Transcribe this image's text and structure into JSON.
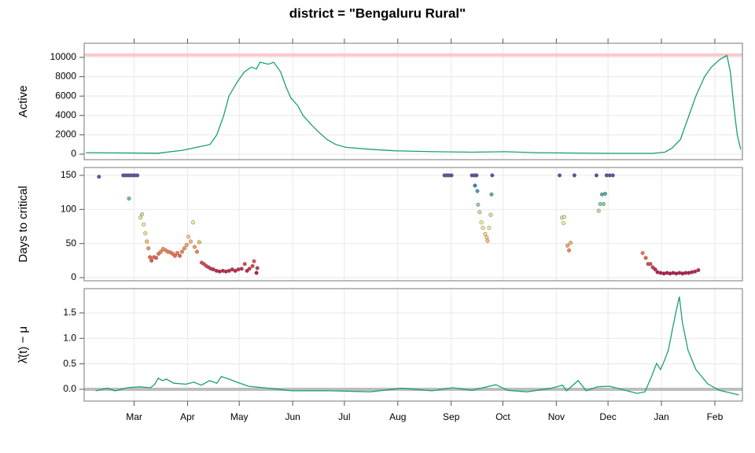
{
  "title": "district = \"Bengaluru Rural\"",
  "chart_data": [
    {
      "type": "line",
      "ylabel": "Active",
      "color": "#1b9e77",
      "reference_line": 10250,
      "reference_color": "#ffc8c8",
      "ylim": [
        -570,
        11460
      ],
      "yticks": [
        0,
        2000,
        4000,
        6000,
        8000,
        10000
      ],
      "grid": true,
      "x": [
        1,
        43,
        57,
        68,
        73,
        77,
        81,
        84,
        89,
        93,
        97,
        100,
        102,
        107,
        110,
        114,
        117,
        120,
        124,
        127,
        132,
        136,
        141,
        146,
        152,
        166,
        180,
        203,
        225,
        244,
        262,
        280,
        307,
        330,
        337,
        341,
        346,
        350,
        355,
        360,
        364,
        369,
        373,
        375,
        377,
        379,
        381
      ],
      "y": [
        150,
        100,
        400,
        800,
        1000,
        2000,
        4000,
        6000,
        7500,
        8500,
        9000,
        8800,
        9500,
        9300,
        9500,
        8500,
        7000,
        5800,
        5000,
        4000,
        3000,
        2300,
        1500,
        1000,
        700,
        500,
        350,
        250,
        200,
        250,
        150,
        120,
        80,
        80,
        200,
        600,
        1500,
        3500,
        6000,
        8000,
        9000,
        9800,
        10200,
        8500,
        5000,
        2000,
        500
      ]
    },
    {
      "type": "scatter",
      "ylabel": "Days to critical",
      "colormap": [
        "#9e0142",
        "#d53e4f",
        "#f46d43",
        "#fdae61",
        "#fee08b",
        "#e6f598",
        "#abdda4",
        "#66c2a5",
        "#3288bd",
        "#5e4fa2"
      ],
      "ylim": [
        -4.6,
        161.5
      ],
      "yticks": [
        0,
        50,
        100,
        150
      ],
      "grid": true,
      "x": [
        8.6,
        22.7,
        24.1,
        25.5,
        26.8,
        28.2,
        29.5,
        30.9,
        26,
        32.7,
        33.6,
        34.5,
        35.5,
        36.4,
        37.3,
        38.2,
        39.1,
        40.5,
        41.8,
        43.2,
        44.5,
        45.9,
        47.3,
        48.6,
        50,
        51.4,
        52.7,
        54.1,
        55.5,
        56.8,
        58.2,
        59.5,
        60.5,
        61.8,
        63.2,
        64.1,
        65.5,
        66.8,
        68.2,
        69.5,
        70.9,
        72.3,
        73.6,
        75,
        76.8,
        78.6,
        80.5,
        82.3,
        84.1,
        85.9,
        87.7,
        89.5,
        91.4,
        93.2,
        94.5,
        95.9,
        97.7,
        98.6,
        100,
        100.5,
        209.1,
        210.5,
        211.8,
        213.2,
        225,
        226.4,
        227.7,
        236.8,
        226.8,
        228.2,
        228.6,
        229.5,
        230.5,
        231.4,
        232.7,
        233.6,
        234.1,
        235,
        235.9,
        236.4,
        275.9,
        284.5,
        297.3,
        303.2,
        305,
        306.8,
        277.3,
        278.6,
        278.2,
        280.5,
        281.4,
        282.3,
        298.6,
        299.5,
        300.5,
        301.4,
        302.3,
        324.1,
        325.9,
        327.3,
        328.6,
        330,
        331.4,
        332.7,
        334.5,
        336.4,
        338.2,
        340,
        341.8,
        343.6,
        345.5,
        347.3,
        349.1,
        350.9,
        352.7,
        354.5,
        356.4
      ],
      "y": [
        148,
        150,
        150,
        150,
        150,
        150,
        150,
        150,
        116,
        88,
        93,
        78,
        65,
        53,
        43,
        30,
        25,
        30,
        29,
        35,
        38,
        42,
        40,
        38,
        37,
        35,
        32,
        36,
        32,
        38,
        43,
        48,
        60,
        53,
        81,
        45,
        38,
        52,
        22,
        20,
        17,
        15,
        13,
        12,
        10,
        9,
        10,
        9,
        10,
        12,
        10,
        12,
        13,
        20,
        10,
        13,
        17,
        24,
        7,
        14,
        150,
        150,
        150,
        150,
        150,
        150,
        150,
        150,
        135,
        127,
        107,
        96,
        81,
        73,
        64,
        59,
        54,
        73,
        92,
        122,
        150,
        150,
        150,
        150,
        150,
        150,
        88,
        89,
        80,
        47,
        40,
        51,
        98,
        108,
        122,
        108,
        123,
        36,
        29,
        20,
        20,
        15,
        12,
        8,
        7,
        6,
        7,
        6,
        7,
        6,
        7,
        6,
        7,
        7,
        8,
        9,
        11
      ]
    },
    {
      "type": "line",
      "ylabel": "λ̂(t) − μ",
      "color": "#1b9e77",
      "reference_line": 0,
      "reference_color": "#bdbdbd",
      "ylim": [
        -0.232,
        1.978
      ],
      "yticks": [
        {
          "value": 0,
          "label": "0.0"
        },
        {
          "value": 0.5,
          "label": "0.5"
        },
        {
          "value": 1,
          "label": "1.0"
        },
        {
          "value": 1.5,
          "label": "1.5"
        }
      ],
      "grid": true,
      "xlim": [
        0,
        382
      ],
      "xticks": [
        {
          "value": 29,
          "label": "Mar"
        },
        {
          "value": 60,
          "label": "Apr"
        },
        {
          "value": 90,
          "label": "May"
        },
        {
          "value": 121,
          "label": "Jun"
        },
        {
          "value": 151,
          "label": "Jul"
        },
        {
          "value": 182,
          "label": "Aug"
        },
        {
          "value": 213,
          "label": "Sep"
        },
        {
          "value": 243,
          "label": "Oct"
        },
        {
          "value": 274,
          "label": "Nov"
        },
        {
          "value": 304,
          "label": "Dec"
        },
        {
          "value": 335,
          "label": "Jan"
        },
        {
          "value": 366,
          "label": "Feb"
        }
      ],
      "x": [
        6.7,
        13.5,
        18,
        25,
        31.7,
        38.6,
        41,
        43,
        45.4,
        47.7,
        52,
        59,
        63.6,
        68,
        72.7,
        77,
        79.6,
        84,
        88.6,
        95.4,
        106.8,
        120.5,
        143,
        166,
        184,
        202,
        213.8,
        225,
        238.9,
        245.8,
        257,
        271,
        277.6,
        280,
        286.7,
        291.3,
        298,
        305,
        311.8,
        320.9,
        325.4,
        329,
        332.2,
        334.5,
        336.8,
        339,
        341.3,
        343.6,
        345.4,
        347.2,
        350.4,
        355,
        361.8,
        368.6,
        380
      ],
      "y": [
        -0.03,
        0.02,
        -0.03,
        0.03,
        0.05,
        0.03,
        0.1,
        0.22,
        0.17,
        0.2,
        0.12,
        0.1,
        0.14,
        0.08,
        0.17,
        0.12,
        0.25,
        0.2,
        0.14,
        0.06,
        0.02,
        -0.03,
        -0.03,
        -0.05,
        0.02,
        -0.03,
        0.03,
        -0.02,
        0.09,
        -0.02,
        -0.05,
        0.02,
        0.08,
        -0.03,
        0.17,
        -0.03,
        0.05,
        0.06,
        0,
        -0.08,
        -0.05,
        0.23,
        0.51,
        0.39,
        0.57,
        0.77,
        1.16,
        1.55,
        1.82,
        1.31,
        0.77,
        0.39,
        0.11,
        -0.02,
        -0.11
      ]
    }
  ]
}
